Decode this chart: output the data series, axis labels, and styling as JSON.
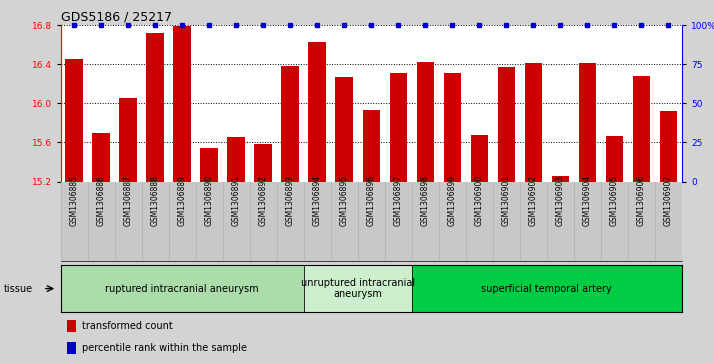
{
  "title": "GDS5186 / 25217",
  "samples": [
    "GSM1306885",
    "GSM1306886",
    "GSM1306887",
    "GSM1306888",
    "GSM1306889",
    "GSM1306890",
    "GSM1306891",
    "GSM1306892",
    "GSM1306893",
    "GSM1306894",
    "GSM1306895",
    "GSM1306896",
    "GSM1306897",
    "GSM1306898",
    "GSM1306899",
    "GSM1306900",
    "GSM1306901",
    "GSM1306902",
    "GSM1306903",
    "GSM1306904",
    "GSM1306905",
    "GSM1306906",
    "GSM1306907"
  ],
  "bar_values": [
    16.46,
    15.7,
    16.06,
    16.72,
    16.79,
    15.54,
    15.66,
    15.58,
    16.38,
    16.63,
    16.27,
    15.93,
    16.31,
    16.42,
    16.31,
    15.68,
    16.37,
    16.41,
    15.26,
    16.41,
    15.67,
    16.28,
    15.92
  ],
  "percentile_values": [
    100,
    100,
    100,
    100,
    100,
    100,
    100,
    100,
    100,
    100,
    100,
    100,
    100,
    100,
    100,
    100,
    100,
    100,
    100,
    100,
    100,
    100,
    100
  ],
  "ylim_left": [
    15.2,
    16.8
  ],
  "ylim_right": [
    0,
    100
  ],
  "yticks_left": [
    15.2,
    15.6,
    16.0,
    16.4,
    16.8
  ],
  "yticks_right": [
    0,
    25,
    50,
    75,
    100
  ],
  "bar_color": "#cc0000",
  "percentile_color": "#0000cc",
  "background_color": "#d3d3d3",
  "plot_bg_color": "#ffffff",
  "xticklabel_bg": "#c8c8c8",
  "tissue_groups": [
    {
      "label": "ruptured intracranial aneurysm",
      "start": 0,
      "end": 9,
      "color": "#aaddaa"
    },
    {
      "label": "unruptured intracranial\naneurysm",
      "start": 9,
      "end": 13,
      "color": "#cceecc"
    },
    {
      "label": "superficial temporal artery",
      "start": 13,
      "end": 23,
      "color": "#00cc44"
    }
  ],
  "tissue_label": "tissue",
  "legend_items": [
    {
      "label": "transformed count",
      "color": "#cc0000"
    },
    {
      "label": "percentile rank within the sample",
      "color": "#0000cc"
    }
  ],
  "grid_linestyle": "dotted",
  "title_fontsize": 9,
  "axis_fontsize": 7,
  "tick_fontsize": 6.5,
  "sample_fontsize": 5.5,
  "tissue_fontsize": 7,
  "legend_fontsize": 7
}
